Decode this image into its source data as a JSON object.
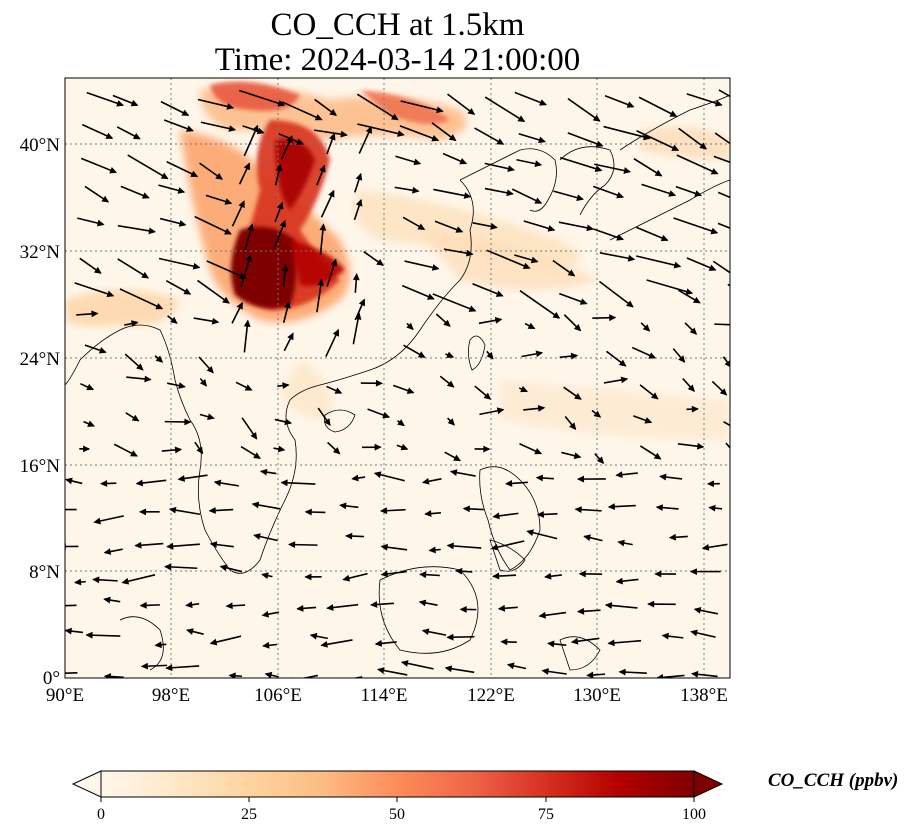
{
  "title": {
    "line1": "CO_CCH at 1.5km",
    "line2": "Time: 2024-03-14 21:00:00"
  },
  "map": {
    "projection": "PlateCarree",
    "lon_range": [
      90,
      140
    ],
    "lat_range": [
      0,
      45
    ],
    "gridlines": "dotted",
    "variable": "CO_CCH",
    "overlay": "wind vectors (quiver)",
    "lon_ticks": [
      "90°E",
      "98°E",
      "106°E",
      "114°E",
      "122°E",
      "130°E",
      "138°E"
    ],
    "lat_ticks": [
      "0°",
      "8°N",
      "16°N",
      "24°N",
      "32°N",
      "40°N"
    ],
    "high_concentration_region": "central China (Sichuan Basin) extending north, ~100 ppbv"
  },
  "colorbar": {
    "colormap": "OrRd",
    "label": "CO_CCH (ppbv)",
    "ticks": [
      "0",
      "25",
      "50",
      "75",
      "100"
    ],
    "range": [
      0,
      100
    ],
    "extend": "both",
    "colors": [
      "#fff7ec",
      "#fee8c8",
      "#fdd49e",
      "#fdbb84",
      "#fc8d59",
      "#ef6548",
      "#d7301f",
      "#b30000",
      "#7f0000"
    ]
  }
}
